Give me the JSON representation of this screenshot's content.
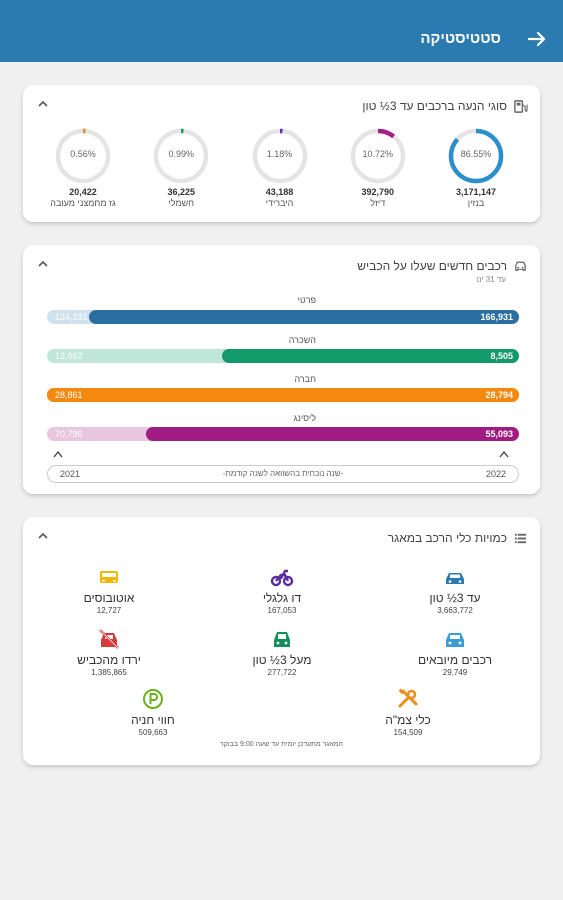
{
  "appbar": {
    "title": "סטטיסטיקה"
  },
  "fuel_card": {
    "title": "סוגי הנעה ברכבים עד 3½ טון",
    "items": [
      {
        "label": "בנזין",
        "percent": "86.55%",
        "fraction": 0.8655,
        "count": "3,171,147",
        "color": "#2b8fcb"
      },
      {
        "label": "דיזל",
        "percent": "10.72%",
        "fraction": 0.1072,
        "count": "392,790",
        "color": "#a0208a"
      },
      {
        "label": "היברידי",
        "percent": "1.18%",
        "fraction": 0.0118,
        "count": "43,188",
        "color": "#6a2bbf"
      },
      {
        "label": "חשמלי",
        "percent": "0.99%",
        "fraction": 0.0099,
        "count": "36,225",
        "color": "#12a05a"
      },
      {
        "label": "גז מחמצני מעובה",
        "percent": "0.56%",
        "fraction": 0.0056,
        "count": "20,422",
        "color": "#f28a17"
      }
    ]
  },
  "new_cars_card": {
    "title": "רכבים חדשים שעלו על הכביש",
    "subtitle": "עד 31 ינו",
    "bars": [
      {
        "label": "פרטי",
        "current": "166,931",
        "previous": "134,231",
        "fraction": 0.91,
        "color": "#2a6fa0",
        "track": "#cfe1ee"
      },
      {
        "label": "השכרה",
        "current": "8,505",
        "previous": "13,662",
        "fraction": 0.63,
        "color": "#129a6a",
        "track": "#bfe6d8"
      },
      {
        "label": "חברה",
        "current": "28,794",
        "previous": "28,861",
        "fraction": 1.0,
        "color": "#f5890f",
        "track": "#f5890f"
      },
      {
        "label": "ליסינג",
        "current": "55,093",
        "previous": "70,796",
        "fraction": 0.79,
        "color": "#a01c83",
        "track": "#e8c6df"
      }
    ],
    "year_left": "2021",
    "year_right": "2022",
    "compare_note": "-שנה נוכחית בהשוואה לשנה קודמת-"
  },
  "quantities_card": {
    "title": "כמויות כלי הרכב במאגר",
    "items": [
      {
        "label": "עד 3½ טון",
        "count": "3,663,772",
        "icon": "car-icon",
        "color": "#2b7bb0"
      },
      {
        "label": "דו גלגלי",
        "count": "167,053",
        "icon": "motorcycle-icon",
        "color": "#5b2ca0"
      },
      {
        "label": "אוטובוסים",
        "count": "12,727",
        "icon": "bus-icon",
        "color": "#f2b705"
      },
      {
        "label": "רכבים מיובאים",
        "count": "29,749",
        "icon": "imported-car-icon",
        "color": "#3a9ed4"
      },
      {
        "label": "מעל 3½ טון",
        "count": "277,722",
        "icon": "truck-icon",
        "color": "#12905a"
      },
      {
        "label": "ירדו מהכביש",
        "count": "1,385,865",
        "icon": "off-road-car-icon",
        "color": "#d83a3a"
      },
      {
        "label": "כלי צמ\"ה",
        "count": "154,509",
        "icon": "tools-icon",
        "color": "#f28a17"
      },
      {
        "label": "חווי חניה",
        "count": "509,663",
        "icon": "parking-icon",
        "color": "#6bb01f"
      }
    ],
    "footnote": "המאגר מתעדכן יומית עד שעה 9:00 בבוקר"
  }
}
